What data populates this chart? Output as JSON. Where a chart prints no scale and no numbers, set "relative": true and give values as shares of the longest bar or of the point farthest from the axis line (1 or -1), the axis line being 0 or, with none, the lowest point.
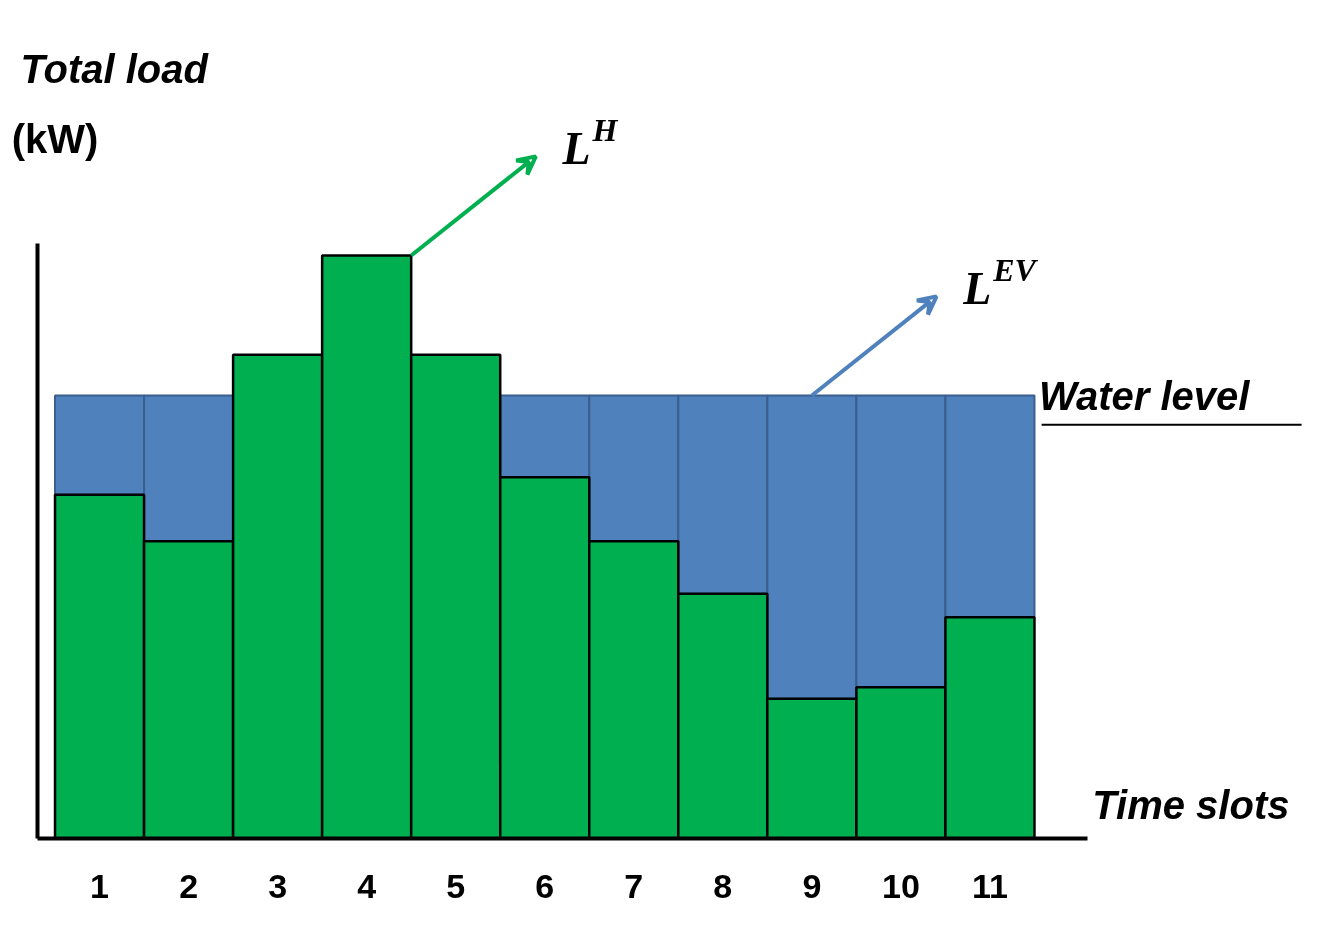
{
  "chart_data": {
    "type": "bar",
    "stacked": true,
    "relative": true,
    "xlabel": "Time slots",
    "ylabel": "Total load (kW)",
    "categories": [
      "1",
      "2",
      "3",
      "4",
      "5",
      "6",
      "7",
      "8",
      "9",
      "10",
      "11"
    ],
    "series": [
      {
        "name": "L$^{H}$",
        "color": "#00b050",
        "values": [
          0.59,
          0.51,
          0.83,
          1.0,
          0.83,
          0.62,
          0.51,
          0.42,
          0.24,
          0.26,
          0.38
        ]
      },
      {
        "name": "L$^{EV}$",
        "color": "#4f81bd",
        "values": [
          0.17,
          0.25,
          null,
          null,
          null,
          0.14,
          0.25,
          0.34,
          0.52,
          0.5,
          0.38
        ]
      }
    ],
    "annotations": [
      "Water level"
    ]
  }
}
